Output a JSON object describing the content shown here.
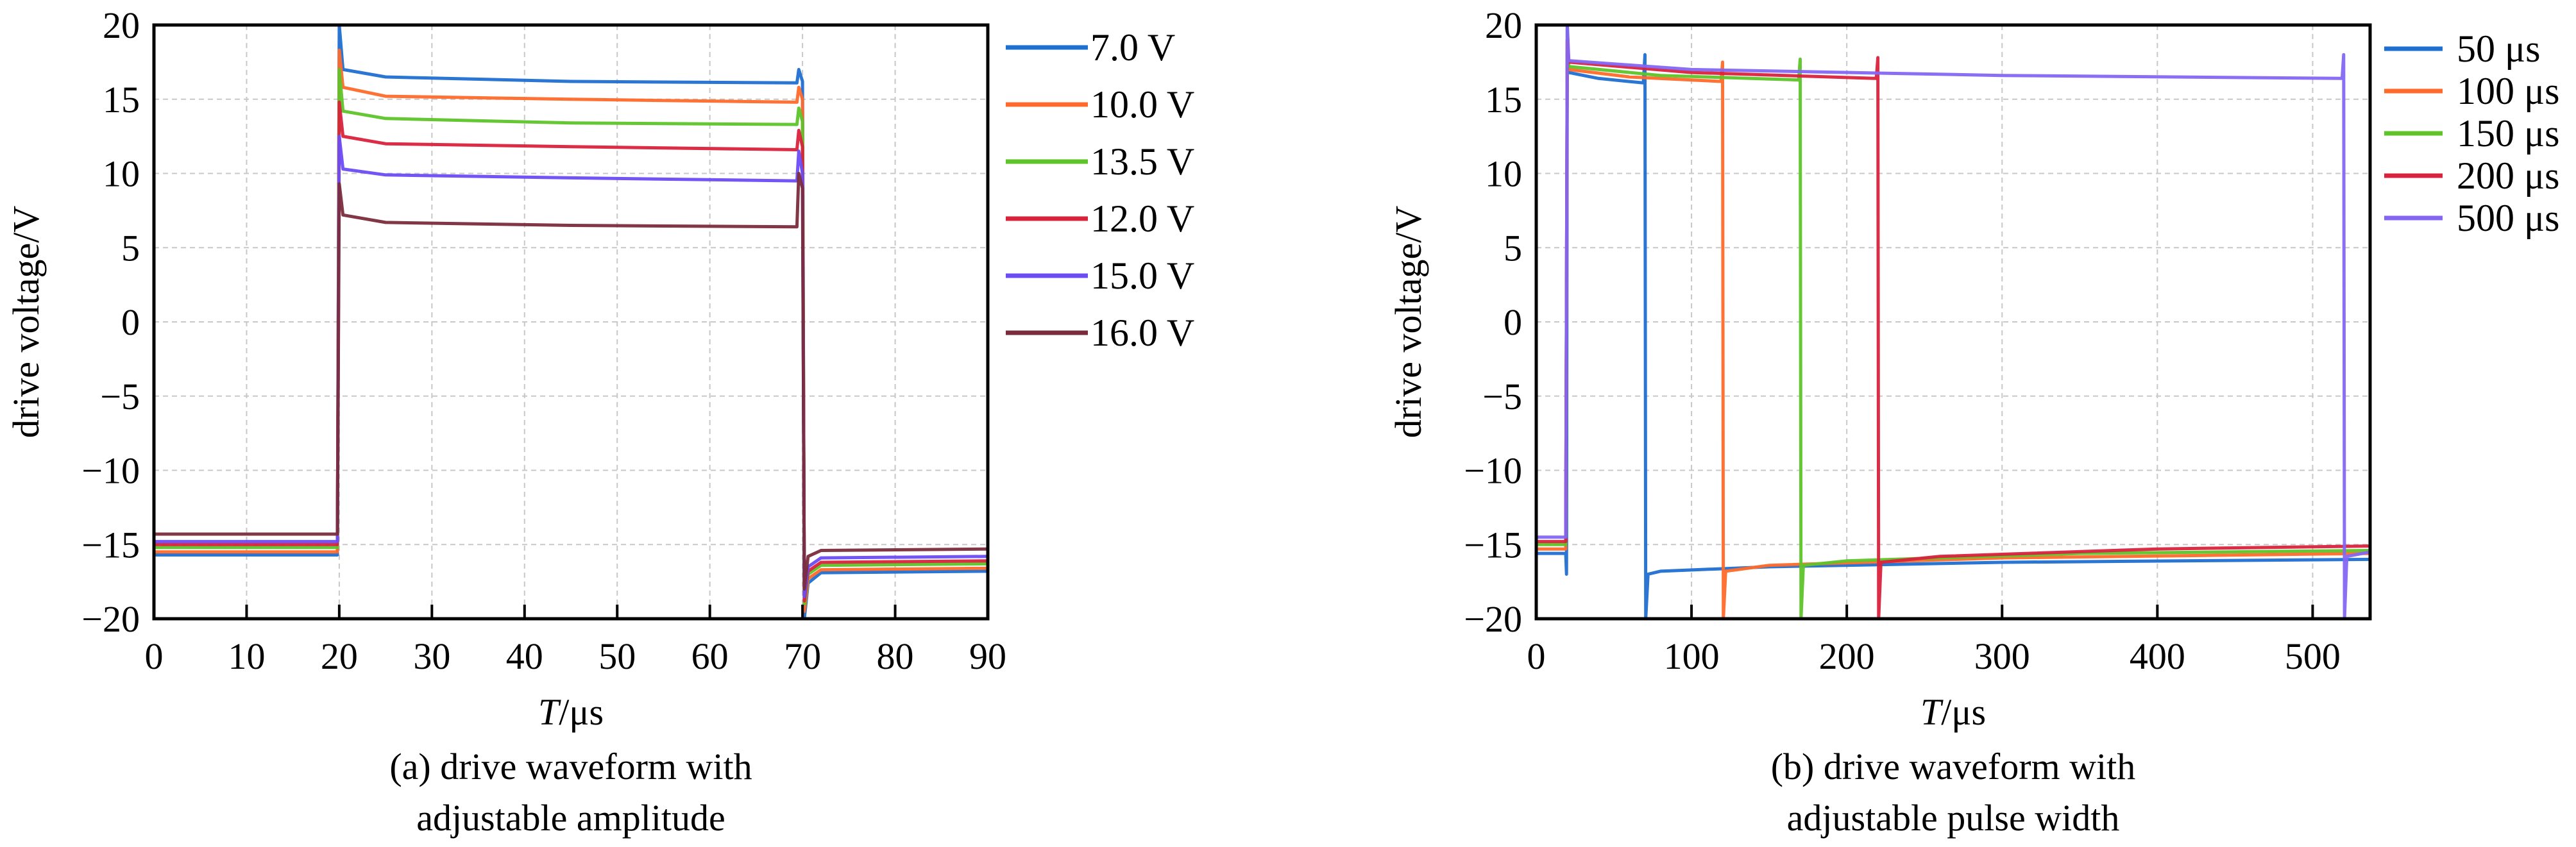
{
  "chart_data": [
    {
      "type": "line",
      "caption": [
        "(a) drive waveform with",
        "adjustable amplitude"
      ],
      "xlabel_italic": "T",
      "xlabel_unit": "/μs",
      "ylabel": "drive voltage/V",
      "xlim": [
        0,
        90
      ],
      "ylim": [
        -20,
        20
      ],
      "xticks": [
        0,
        10,
        20,
        30,
        40,
        50,
        60,
        70,
        80,
        90
      ],
      "yticks": [
        -20,
        -15,
        -10,
        -5,
        0,
        5,
        10,
        15,
        20
      ],
      "ytick_labels": [
        "−20",
        "−15",
        "−10",
        "−5",
        "0",
        "5",
        "10",
        "15",
        "20"
      ],
      "grid": true,
      "legend_position": "outside-right",
      "series": [
        {
          "name": "7.0 V",
          "color": "#1f6fd0",
          "points": [
            [
              0,
              -15.7
            ],
            [
              19.8,
              -15.7
            ],
            [
              20,
              20
            ],
            [
              20.4,
              17.0
            ],
            [
              25,
              16.5
            ],
            [
              45,
              16.2
            ],
            [
              69.4,
              16.1
            ],
            [
              69.6,
              17.0
            ],
            [
              70,
              16.2
            ],
            [
              70.2,
              -20
            ],
            [
              70.6,
              -17.6
            ],
            [
              72,
              -16.9
            ],
            [
              90,
              -16.8
            ]
          ]
        },
        {
          "name": "10.0 V",
          "color": "#ff6a2b",
          "points": [
            [
              0,
              -15.5
            ],
            [
              19.8,
              -15.5
            ],
            [
              20,
              18.3
            ],
            [
              20.4,
              15.8
            ],
            [
              25,
              15.2
            ],
            [
              45,
              15.0
            ],
            [
              69.4,
              14.8
            ],
            [
              69.6,
              15.8
            ],
            [
              70,
              15.0
            ],
            [
              70.2,
              -19.5
            ],
            [
              70.6,
              -17.3
            ],
            [
              72,
              -16.7
            ],
            [
              90,
              -16.6
            ]
          ]
        },
        {
          "name": "13.5 V",
          "color": "#5ec42a",
          "points": [
            [
              0,
              -15.2
            ],
            [
              19.8,
              -15.2
            ],
            [
              20,
              17.0
            ],
            [
              20.4,
              14.2
            ],
            [
              25,
              13.7
            ],
            [
              45,
              13.4
            ],
            [
              69.4,
              13.3
            ],
            [
              69.6,
              14.4
            ],
            [
              70,
              13.5
            ],
            [
              70.2,
              -19.0
            ],
            [
              70.6,
              -17.0
            ],
            [
              72,
              -16.4
            ],
            [
              90,
              -16.3
            ]
          ]
        },
        {
          "name": "12.0 V",
          "color": "#d9223c",
          "points": [
            [
              0,
              -15.0
            ],
            [
              19.8,
              -15.0
            ],
            [
              20,
              14.8
            ],
            [
              20.4,
              12.5
            ],
            [
              25,
              12.0
            ],
            [
              45,
              11.8
            ],
            [
              69.4,
              11.6
            ],
            [
              69.6,
              12.9
            ],
            [
              70,
              11.8
            ],
            [
              70.2,
              -18.8
            ],
            [
              70.6,
              -16.8
            ],
            [
              72,
              -16.2
            ],
            [
              90,
              -16.1
            ]
          ]
        },
        {
          "name": "15.0 V",
          "color": "#6b4cf5",
          "points": [
            [
              0,
              -14.8
            ],
            [
              19.8,
              -14.8
            ],
            [
              20,
              12.5
            ],
            [
              20.4,
              10.3
            ],
            [
              25,
              9.9
            ],
            [
              45,
              9.7
            ],
            [
              69.4,
              9.5
            ],
            [
              69.6,
              11.5
            ],
            [
              70,
              10.0
            ],
            [
              70.2,
              -18.5
            ],
            [
              70.6,
              -16.5
            ],
            [
              72,
              -15.9
            ],
            [
              90,
              -15.8
            ]
          ]
        },
        {
          "name": "16.0 V",
          "color": "#7a2c3c",
          "points": [
            [
              0,
              -14.3
            ],
            [
              19.8,
              -14.3
            ],
            [
              20,
              9.3
            ],
            [
              20.4,
              7.2
            ],
            [
              25,
              6.7
            ],
            [
              45,
              6.5
            ],
            [
              69.4,
              6.4
            ],
            [
              69.6,
              10.0
            ],
            [
              70,
              9.0
            ],
            [
              70.2,
              -18.0
            ],
            [
              70.6,
              -15.8
            ],
            [
              72,
              -15.4
            ],
            [
              90,
              -15.3
            ]
          ]
        }
      ]
    },
    {
      "type": "line",
      "caption": [
        "(b) drive waveform with",
        "adjustable pulse width"
      ],
      "xlabel_italic": "T",
      "xlabel_unit": "/μs",
      "ylabel": "drive voltage/V",
      "xlim": [
        0,
        537
      ],
      "ylim": [
        -20,
        20
      ],
      "xticks": [
        0,
        100,
        200,
        300,
        400,
        500
      ],
      "yticks": [
        -20,
        -15,
        -10,
        -5,
        0,
        5,
        10,
        15,
        20
      ],
      "ytick_labels": [
        "−20",
        "−15",
        "−10",
        "−5",
        "0",
        "5",
        "10",
        "15",
        "20"
      ],
      "grid": true,
      "legend_position": "outside-right",
      "series": [
        {
          "name": "50 μs",
          "color": "#1f6fd0",
          "points": [
            [
              0,
              -15.6
            ],
            [
              19,
              -15.6
            ],
            [
              19.5,
              -17
            ],
            [
              20,
              20
            ],
            [
              21,
              16.8
            ],
            [
              40,
              16.4
            ],
            [
              69,
              16.1
            ],
            [
              70,
              18.0
            ],
            [
              70.5,
              -20
            ],
            [
              72,
              -17.0
            ],
            [
              80,
              -16.8
            ],
            [
              150,
              -16.5
            ],
            [
              300,
              -16.2
            ],
            [
              537,
              -16.0
            ]
          ]
        },
        {
          "name": "100 μs",
          "color": "#ff6a2b",
          "points": [
            [
              0,
              -15.3
            ],
            [
              19,
              -15.3
            ],
            [
              20,
              19
            ],
            [
              21,
              17.0
            ],
            [
              60,
              16.5
            ],
            [
              119,
              16.2
            ],
            [
              120,
              17.5
            ],
            [
              120.5,
              -20
            ],
            [
              122,
              -16.8
            ],
            [
              150,
              -16.4
            ],
            [
              300,
              -15.9
            ],
            [
              537,
              -15.6
            ]
          ]
        },
        {
          "name": "150 μs",
          "color": "#5ec42a",
          "points": [
            [
              0,
              -15.0
            ],
            [
              19,
              -15.0
            ],
            [
              20,
              19
            ],
            [
              21,
              17.2
            ],
            [
              80,
              16.6
            ],
            [
              169,
              16.3
            ],
            [
              170,
              17.7
            ],
            [
              170.5,
              -20
            ],
            [
              172,
              -16.4
            ],
            [
              200,
              -16.1
            ],
            [
              350,
              -15.6
            ],
            [
              537,
              -15.4
            ]
          ]
        },
        {
          "name": "200 μs",
          "color": "#d9223c",
          "points": [
            [
              0,
              -14.8
            ],
            [
              19,
              -14.8
            ],
            [
              20,
              19
            ],
            [
              21,
              17.5
            ],
            [
              100,
              16.8
            ],
            [
              219,
              16.4
            ],
            [
              220,
              17.8
            ],
            [
              220.5,
              -20
            ],
            [
              222,
              -16.2
            ],
            [
              260,
              -15.8
            ],
            [
              400,
              -15.3
            ],
            [
              537,
              -15.1
            ]
          ]
        },
        {
          "name": "500 μs",
          "color": "#8466f2",
          "points": [
            [
              0,
              -14.5
            ],
            [
              19,
              -14.5
            ],
            [
              20,
              20
            ],
            [
              21,
              17.6
            ],
            [
              100,
              17.0
            ],
            [
              300,
              16.6
            ],
            [
              519,
              16.4
            ],
            [
              520,
              18.0
            ],
            [
              520.5,
              -20
            ],
            [
              522,
              -15.8
            ],
            [
              537,
              -15.5
            ]
          ]
        }
      ]
    }
  ]
}
